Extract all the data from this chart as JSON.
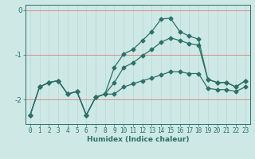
{
  "title": "",
  "xlabel": "Humidex (Indice chaleur)",
  "ylabel": "",
  "bg_color": "#cde8e5",
  "line_color": "#2d7068",
  "grid_h_color": "#e08080",
  "grid_v_color": "#b8d8d5",
  "x": [
    0,
    1,
    2,
    3,
    4,
    5,
    6,
    7,
    8,
    9,
    10,
    11,
    12,
    13,
    14,
    15,
    16,
    17,
    18,
    19,
    20,
    21,
    22,
    23
  ],
  "top_y": [
    -2.35,
    -1.72,
    -1.62,
    -1.58,
    -1.88,
    -1.82,
    -2.35,
    -1.95,
    -1.88,
    -1.28,
    -0.98,
    -0.88,
    -0.68,
    -0.48,
    -0.2,
    -0.18,
    -0.48,
    -0.58,
    -0.65,
    -1.55,
    -1.62,
    -1.62,
    -1.72,
    -1.58
  ],
  "mid_y": [
    -2.35,
    -1.72,
    -1.62,
    -1.58,
    -1.88,
    -1.82,
    -2.35,
    -1.95,
    -1.88,
    -1.62,
    -1.28,
    -1.18,
    -1.02,
    -0.88,
    -0.72,
    -0.62,
    -0.68,
    -0.75,
    -0.78,
    -1.55,
    -1.62,
    -1.62,
    -1.72,
    -1.58
  ],
  "bot_y": [
    -2.35,
    -1.72,
    -1.62,
    -1.58,
    -1.88,
    -1.82,
    -2.35,
    -1.95,
    -1.88,
    -1.88,
    -1.72,
    -1.65,
    -1.58,
    -1.52,
    -1.45,
    -1.38,
    -1.38,
    -1.42,
    -1.42,
    -1.75,
    -1.78,
    -1.78,
    -1.82,
    -1.72
  ],
  "ylim": [
    -2.55,
    0.12
  ],
  "yticks": [
    0,
    -1,
    -2
  ],
  "xlim": [
    -0.5,
    23.5
  ],
  "marker": "D",
  "markersize": 2.5,
  "linewidth": 0.9,
  "fontsize_tick": 5.5,
  "fontsize_xlabel": 6.5
}
